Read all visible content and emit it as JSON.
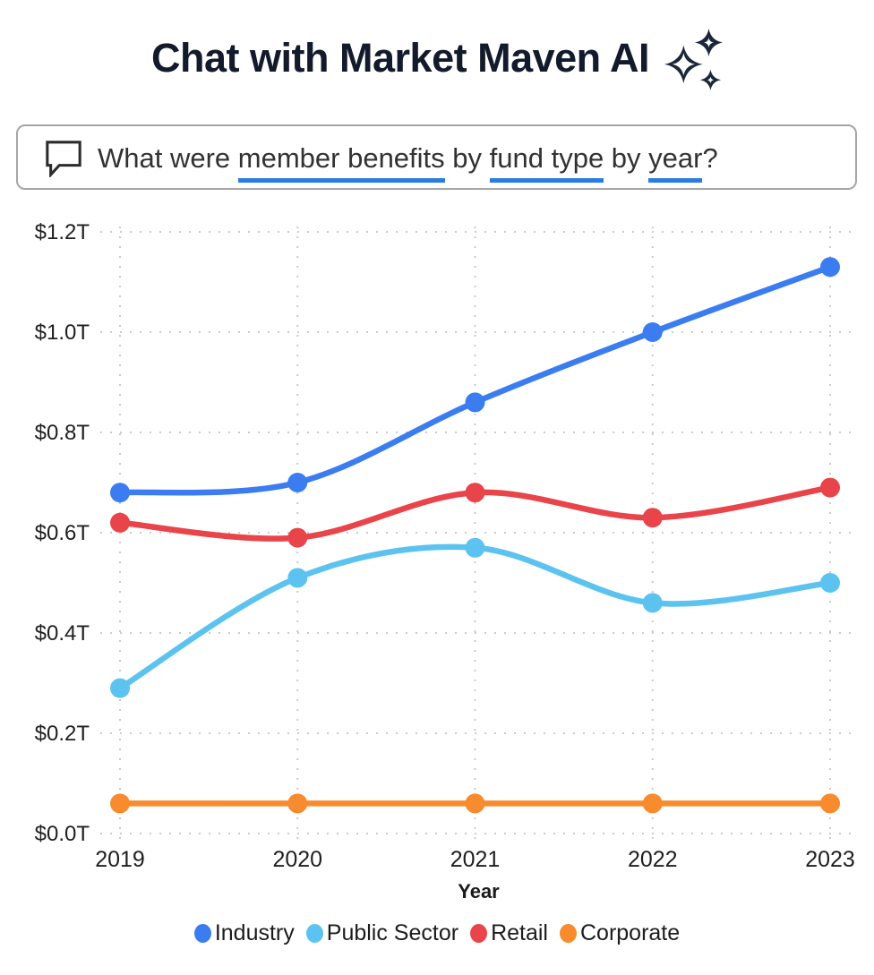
{
  "header": {
    "title": "Chat with Market Maven AI"
  },
  "chat_input": {
    "question_parts": [
      {
        "text": "What were ",
        "underlined": false
      },
      {
        "text": "member benefits",
        "underlined": true
      },
      {
        "text": " by ",
        "underlined": false
      },
      {
        "text": "fund type",
        "underlined": true
      },
      {
        "text": " by ",
        "underlined": false
      },
      {
        "text": "year",
        "underlined": true
      },
      {
        "text": "?",
        "underlined": false
      }
    ]
  },
  "chart_data": {
    "type": "line",
    "x": [
      "2019",
      "2020",
      "2021",
      "2022",
      "2023"
    ],
    "xlabel": "Year",
    "ylabel": "",
    "ylim": [
      0,
      1.2
    ],
    "y_ticks": [
      0,
      0.2,
      0.4,
      0.6,
      0.8,
      1.0,
      1.2
    ],
    "y_tick_labels": [
      "$0.0T",
      "$0.2T",
      "$0.4T",
      "$0.6T",
      "$0.8T",
      "$1.0T",
      "$1.2T"
    ],
    "grid": true,
    "legend_position": "bottom",
    "series": [
      {
        "name": "Industry",
        "color": "#3b7df0",
        "values": [
          0.68,
          0.7,
          0.86,
          1.0,
          1.13
        ]
      },
      {
        "name": "Public Sector",
        "color": "#5cc3f0",
        "values": [
          0.29,
          0.51,
          0.57,
          0.46,
          0.5
        ]
      },
      {
        "name": "Retail",
        "color": "#e94449",
        "values": [
          0.62,
          0.59,
          0.68,
          0.63,
          0.69
        ]
      },
      {
        "name": "Corporate",
        "color": "#f78b2d",
        "values": [
          0.06,
          0.06,
          0.06,
          0.06,
          0.06
        ]
      }
    ]
  },
  "colors": {
    "underline": "#2b7ce0",
    "grid": "#cbcbcb",
    "title_icon": "#1b2738",
    "input_icon": "#2b2b2b"
  }
}
